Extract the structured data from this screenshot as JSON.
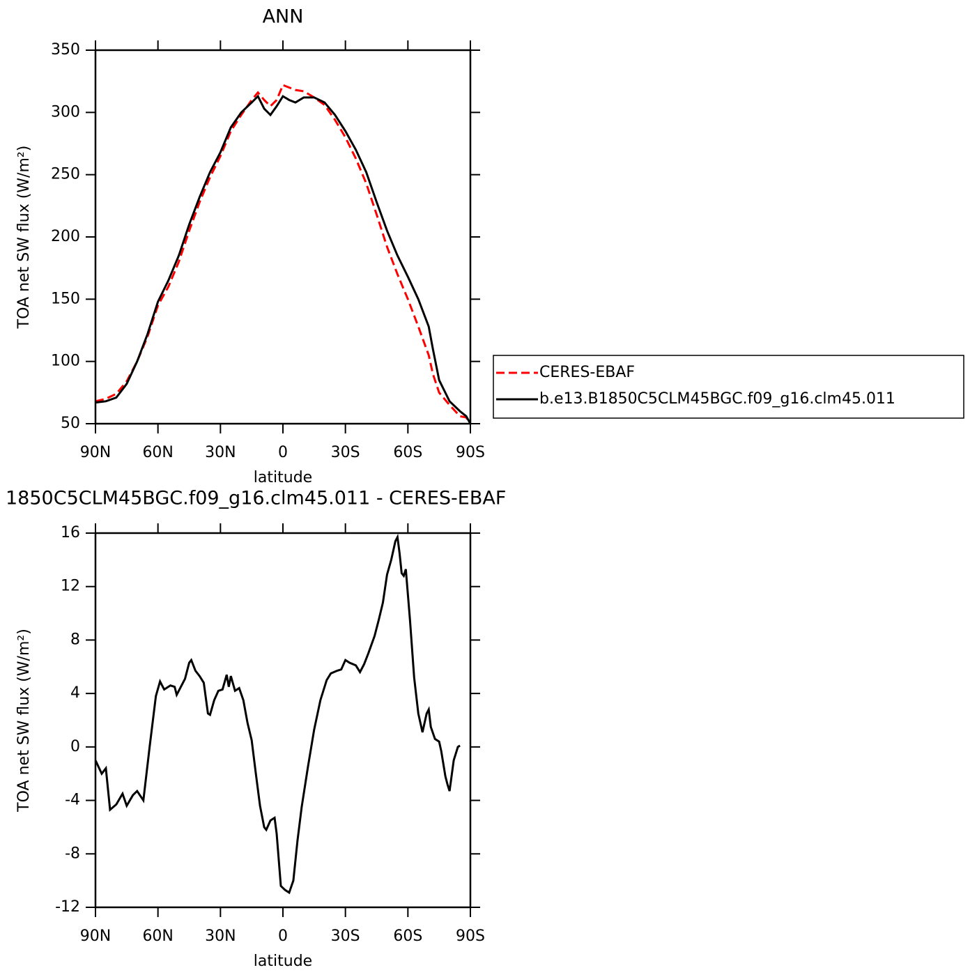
{
  "chart_data": [
    {
      "type": "line",
      "title": "ANN",
      "x_label": "latitude",
      "y_label": "TOA net SW flux (W/m²)",
      "x": [
        90,
        85,
        80,
        75,
        70,
        65,
        60,
        55,
        50,
        45,
        40,
        35,
        30,
        25,
        20,
        15,
        12,
        9,
        6,
        3,
        0,
        -3,
        -6,
        -10,
        -15,
        -20,
        -25,
        -30,
        -35,
        -40,
        -45,
        -50,
        -55,
        -60,
        -65,
        -70,
        -72,
        -75,
        -80,
        -85,
        -88,
        -90
      ],
      "series": [
        {
          "name": "CERES-EBAF",
          "color": "#ff0000",
          "dashed": true,
          "values": [
            68,
            70,
            74,
            84,
            100,
            120,
            145,
            160,
            180,
            205,
            228,
            248,
            265,
            285,
            298,
            310,
            316,
            310,
            305,
            310,
            322,
            320,
            318,
            317,
            312,
            306,
            294,
            280,
            263,
            243,
            218,
            192,
            170,
            150,
            128,
            105,
            90,
            75,
            65,
            56,
            55,
            50
          ]
        },
        {
          "name": "b.e13.B1850C5CLM45BGC.f09_g16.clm45.011",
          "color": "#000000",
          "dashed": false,
          "values": [
            67,
            68,
            71,
            82,
            100,
            122,
            148,
            165,
            185,
            210,
            232,
            252,
            268,
            288,
            300,
            308,
            313,
            303,
            298,
            305,
            313,
            310,
            308,
            312,
            312,
            308,
            298,
            285,
            270,
            252,
            228,
            205,
            185,
            168,
            150,
            128,
            110,
            85,
            68,
            60,
            56,
            50
          ]
        }
      ],
      "xlim": [
        90,
        -90
      ],
      "xticks": [
        {
          "value": 90,
          "label": "90N"
        },
        {
          "value": 60,
          "label": "60N"
        },
        {
          "value": 30,
          "label": "30N"
        },
        0,
        {
          "value": -30,
          "label": "30S"
        },
        {
          "value": -60,
          "label": "60S"
        },
        {
          "value": -90,
          "label": "90S"
        }
      ],
      "ylim": [
        50,
        350
      ],
      "yticks": [
        50,
        100,
        150,
        200,
        250,
        300,
        350
      ],
      "legend": "right"
    },
    {
      "type": "line",
      "title": "1850C5CLM45BGC.f09_g16.clm45.011 - CERES-EBAF",
      "x_label": "latitude",
      "y_label": "TOA net SW flux (W/m²)",
      "x": [
        90,
        87,
        85,
        83,
        80,
        77,
        75,
        72,
        70,
        67,
        64,
        61,
        59,
        57,
        54,
        52,
        51,
        49,
        47,
        45,
        44,
        42,
        40,
        38,
        36,
        35,
        33,
        31,
        29,
        27,
        26,
        25,
        23,
        21,
        19,
        17,
        15,
        13,
        11,
        9,
        8,
        6,
        4,
        3,
        1,
        -1,
        -3,
        -5,
        -7,
        -9,
        -12,
        -15,
        -18,
        -21,
        -23,
        -26,
        -28,
        -30,
        -32,
        -35,
        -37,
        -39,
        -41,
        -44,
        -46,
        -48,
        -50,
        -52,
        -54,
        -55,
        -56,
        -57,
        -58,
        -59,
        -61,
        -63,
        -65,
        -67,
        -69,
        -70,
        -71,
        -73,
        -75,
        -76,
        -78,
        -79,
        -80,
        -82,
        -84,
        -85
      ],
      "values": [
        -1,
        -2,
        -1.6,
        -4.7,
        -4.3,
        -3.5,
        -4.4,
        -3.6,
        -3.3,
        -4,
        0,
        3.8,
        4.9,
        4.3,
        4.6,
        4.5,
        3.9,
        4.5,
        5.1,
        6.3,
        6.5,
        5.7,
        5.3,
        4.8,
        2.5,
        2.4,
        3.5,
        4.2,
        4.3,
        5.4,
        4.5,
        5.3,
        4.2,
        4.4,
        3.5,
        1.8,
        0.5,
        -2,
        -4.4,
        -6,
        -6.2,
        -5.5,
        -5.3,
        -6.5,
        -10.4,
        -10.7,
        -10.9,
        -10,
        -7,
        -4.5,
        -1.5,
        1.3,
        3.5,
        5,
        5.5,
        5.7,
        5.8,
        6.5,
        6.3,
        6.1,
        5.6,
        6.2,
        7,
        8.3,
        9.5,
        10.8,
        12.9,
        14,
        15.4,
        15.7,
        14.5,
        13,
        12.8,
        13.3,
        9.5,
        5.2,
        2.5,
        1.1,
        2.5,
        2.8,
        1.5,
        0.6,
        0.4,
        -0.3,
        -2.2,
        -2.8,
        -3.3,
        -1,
        0,
        0.1
      ],
      "color": "#000000",
      "xlim": [
        90,
        -90
      ],
      "xticks": [
        {
          "value": 90,
          "label": "90N"
        },
        {
          "value": 60,
          "label": "60N"
        },
        {
          "value": 30,
          "label": "30N"
        },
        0,
        {
          "value": -30,
          "label": "30S"
        },
        {
          "value": -60,
          "label": "60S"
        },
        {
          "value": -90,
          "label": "90S"
        }
      ],
      "ylim": [
        -12,
        16
      ],
      "yticks": [
        -12,
        -8,
        -4,
        0,
        4,
        8,
        12,
        16
      ]
    }
  ]
}
